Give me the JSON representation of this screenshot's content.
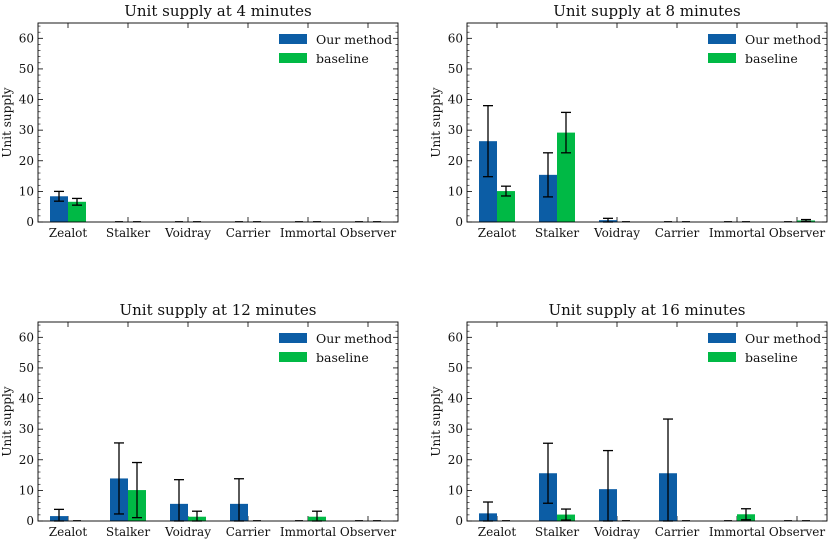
{
  "colors": {
    "our_method": "#0C5DA5",
    "baseline": "#00B945",
    "error": "#000000",
    "axes": "#000000"
  },
  "chart_data": [
    {
      "type": "bar",
      "title": "Unit supply at 4 minutes",
      "xlabel": "",
      "ylabel": "Unit supply",
      "ylim": [
        0,
        65
      ],
      "yticks": [
        0,
        10,
        20,
        30,
        40,
        50,
        60
      ],
      "categories": [
        "Zealot",
        "Stalker",
        "Voidray",
        "Carrier",
        "Immortal",
        "Observer"
      ],
      "legend_position": "top-right",
      "series": [
        {
          "name": "Our method",
          "values": [
            8.4,
            0,
            0,
            0,
            0,
            0
          ],
          "errors": [
            1.6,
            0,
            0,
            0,
            0,
            0
          ]
        },
        {
          "name": "baseline",
          "values": [
            6.6,
            0,
            0,
            0,
            0,
            0
          ],
          "errors": [
            1.1,
            0,
            0,
            0,
            0,
            0
          ]
        }
      ]
    },
    {
      "type": "bar",
      "title": "Unit supply at 8 minutes",
      "xlabel": "",
      "ylabel": "Unit supply",
      "ylim": [
        0,
        65
      ],
      "yticks": [
        0,
        10,
        20,
        30,
        40,
        50,
        60
      ],
      "categories": [
        "Zealot",
        "Stalker",
        "Voidray",
        "Carrier",
        "Immortal",
        "Observer"
      ],
      "legend_position": "top-right",
      "series": [
        {
          "name": "Our method",
          "values": [
            26.4,
            15.4,
            0.6,
            0,
            0,
            0
          ],
          "errors": [
            11.6,
            7.2,
            0.6,
            0,
            0,
            0
          ]
        },
        {
          "name": "baseline",
          "values": [
            10.1,
            29.2,
            0,
            0,
            0,
            0.5
          ],
          "errors": [
            1.6,
            6.6,
            0,
            0,
            0,
            0.3
          ]
        }
      ]
    },
    {
      "type": "bar",
      "title": "Unit supply at 12 minutes",
      "xlabel": "",
      "ylabel": "Unit supply",
      "ylim": [
        0,
        65
      ],
      "yticks": [
        0,
        10,
        20,
        30,
        40,
        50,
        60
      ],
      "categories": [
        "Zealot",
        "Stalker",
        "Voidray",
        "Carrier",
        "Immortal",
        "Observer"
      ],
      "legend_position": "top-right",
      "series": [
        {
          "name": "Our method",
          "values": [
            1.6,
            13.9,
            5.6,
            5.6,
            0,
            0
          ],
          "errors": [
            2.2,
            11.6,
            7.9,
            8.2,
            0,
            0
          ]
        },
        {
          "name": "baseline",
          "values": [
            0,
            10.1,
            1.4,
            0,
            1.4,
            0
          ],
          "errors": [
            0,
            9.0,
            1.8,
            0,
            1.8,
            0
          ]
        }
      ]
    },
    {
      "type": "bar",
      "title": "Unit supply at 16 minutes",
      "xlabel": "",
      "ylabel": "Unit supply",
      "ylim": [
        0,
        65
      ],
      "yticks": [
        0,
        10,
        20,
        30,
        40,
        50,
        60
      ],
      "categories": [
        "Zealot",
        "Stalker",
        "Voidray",
        "Carrier",
        "Immortal",
        "Observer"
      ],
      "legend_position": "top-right",
      "series": [
        {
          "name": "Our method",
          "values": [
            2.5,
            15.6,
            10.4,
            15.6,
            0,
            0
          ],
          "errors": [
            3.7,
            9.8,
            12.6,
            17.7,
            0,
            0
          ]
        },
        {
          "name": "baseline",
          "values": [
            0,
            2.1,
            0,
            0,
            2.2,
            0
          ],
          "errors": [
            0,
            1.8,
            0,
            0,
            1.8,
            0
          ]
        }
      ]
    }
  ]
}
